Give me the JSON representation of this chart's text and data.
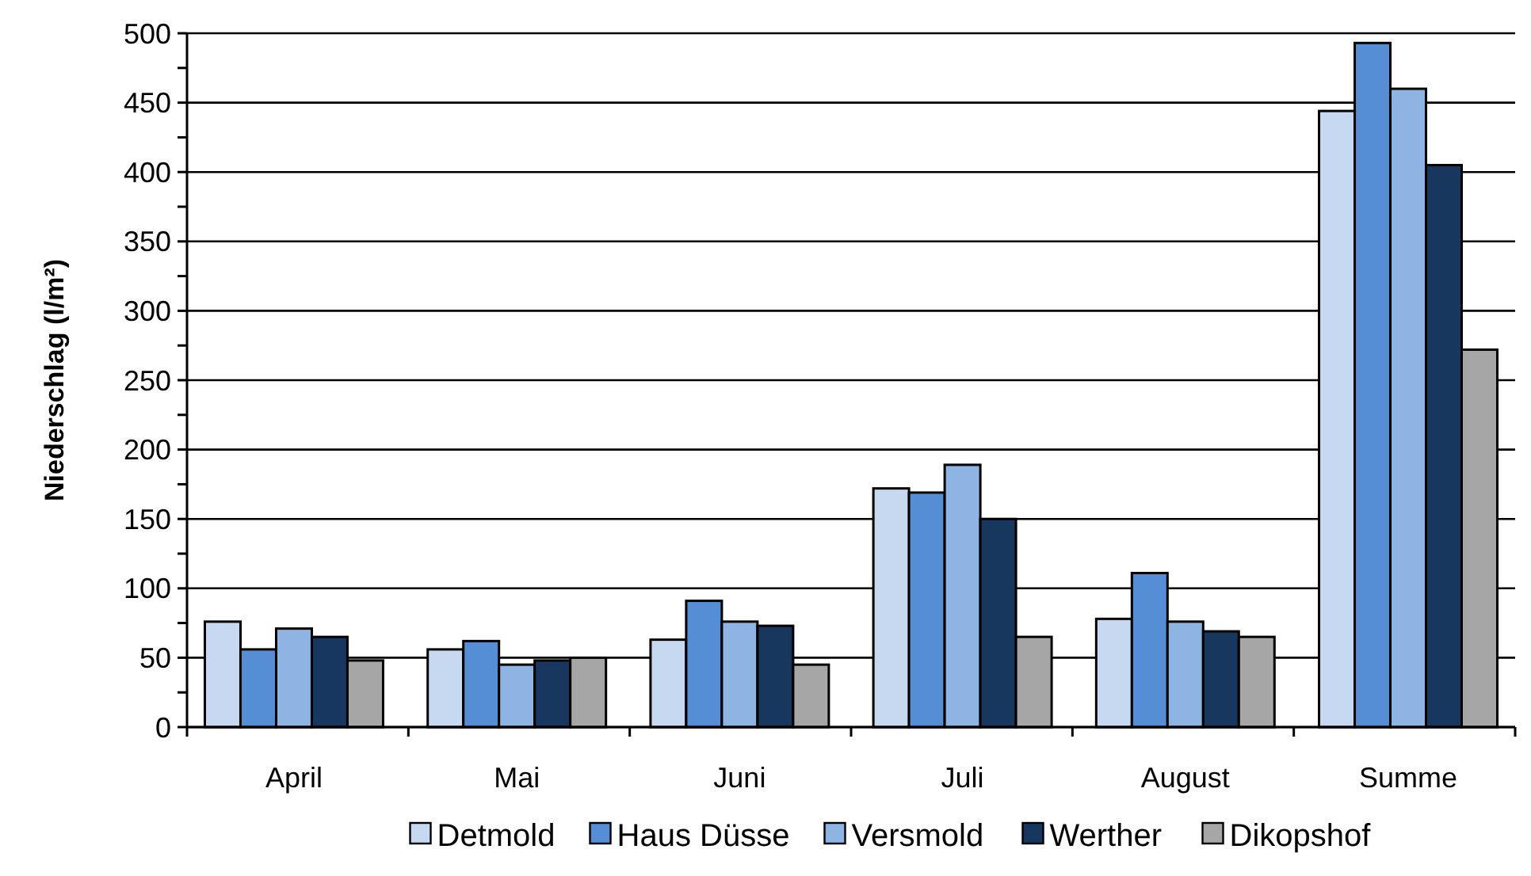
{
  "chart_data": {
    "type": "bar",
    "ylabel": "Niederschlag (l/m²)",
    "categories": [
      "April",
      "Mai",
      "Juni",
      "Juli",
      "August",
      "Summe"
    ],
    "series": [
      {
        "name": "Detmold",
        "color": "#c6d9f1",
        "values": [
          76,
          56,
          63,
          172,
          78,
          444
        ]
      },
      {
        "name": "Haus Düsse",
        "color": "#558ed5",
        "values": [
          56,
          62,
          91,
          169,
          111,
          493
        ]
      },
      {
        "name": "Versmold",
        "color": "#8eb4e3",
        "values": [
          71,
          45,
          76,
          189,
          76,
          460
        ]
      },
      {
        "name": "Werther",
        "color": "#17375e",
        "values": [
          65,
          48,
          73,
          150,
          69,
          405
        ]
      },
      {
        "name": "Dikopshof",
        "color": "#a6a6a6",
        "values": [
          48,
          50,
          45,
          65,
          65,
          272
        ]
      }
    ],
    "ylim": [
      0,
      500
    ],
    "yticks": [
      0,
      {
        "value": 25,
        "label": null
      },
      50,
      {
        "value": 75,
        "label": null
      },
      100,
      {
        "value": 125,
        "label": null
      },
      150,
      {
        "value": 175,
        "label": null
      },
      200,
      {
        "value": 225,
        "label": null
      },
      250,
      {
        "value": 275,
        "label": null
      },
      300,
      {
        "value": 325,
        "label": null
      },
      350,
      {
        "value": 375,
        "label": null
      },
      400,
      {
        "value": 425,
        "label": null
      },
      450,
      {
        "value": 475,
        "label": null
      },
      500
    ],
    "grid": "y",
    "legend": "bottom"
  }
}
